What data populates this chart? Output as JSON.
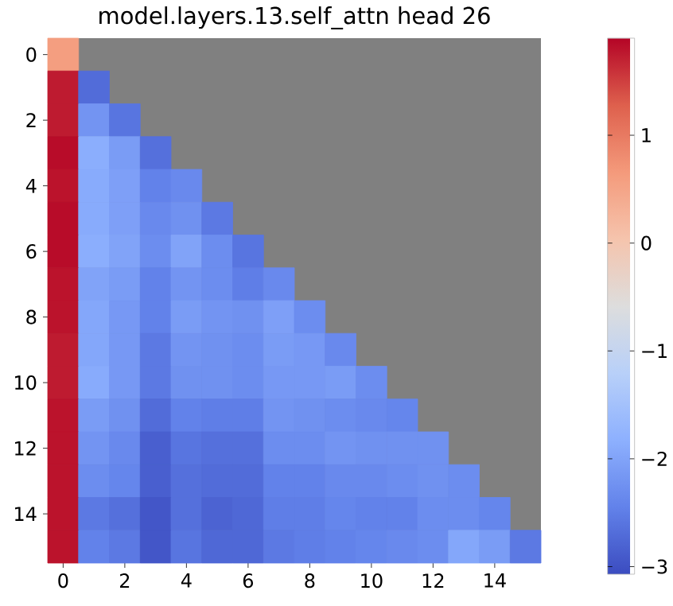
{
  "chart_data": {
    "type": "heatmap",
    "title": "model.layers.13.self_attn head 26",
    "categories": [
      "0",
      null,
      "2",
      null,
      "4",
      null,
      "6",
      null,
      "8",
      null,
      "10",
      null,
      "12",
      null,
      "14",
      null
    ],
    "y_categories": [
      "0",
      null,
      "2",
      null,
      "4",
      null,
      "6",
      null,
      "8",
      null,
      "10",
      null,
      "12",
      null,
      "14",
      null
    ],
    "cells": [
      [
        0.6,
        null,
        null,
        null,
        null,
        null,
        null,
        null,
        null,
        null,
        null,
        null,
        null,
        null,
        null,
        null
      ],
      [
        1.75,
        -2.7,
        null,
        null,
        null,
        null,
        null,
        null,
        null,
        null,
        null,
        null,
        null,
        null,
        null,
        null
      ],
      [
        1.75,
        -2.2,
        -2.6,
        null,
        null,
        null,
        null,
        null,
        null,
        null,
        null,
        null,
        null,
        null,
        null,
        null
      ],
      [
        1.85,
        -1.85,
        -2.1,
        -2.65,
        null,
        null,
        null,
        null,
        null,
        null,
        null,
        null,
        null,
        null,
        null,
        null
      ],
      [
        1.8,
        -1.9,
        -2.05,
        -2.45,
        -2.35,
        null,
        null,
        null,
        null,
        null,
        null,
        null,
        null,
        null,
        null,
        null
      ],
      [
        1.85,
        -1.9,
        -2.05,
        -2.35,
        -2.25,
        -2.55,
        null,
        null,
        null,
        null,
        null,
        null,
        null,
        null,
        null,
        null
      ],
      [
        1.85,
        -1.85,
        -2.0,
        -2.3,
        -2.0,
        -2.3,
        -2.6,
        null,
        null,
        null,
        null,
        null,
        null,
        null,
        null,
        null
      ],
      [
        1.8,
        -2.0,
        -2.1,
        -2.45,
        -2.2,
        -2.3,
        -2.5,
        -2.35,
        null,
        null,
        null,
        null,
        null,
        null,
        null,
        null
      ],
      [
        1.8,
        -1.95,
        -2.15,
        -2.45,
        -2.1,
        -2.2,
        -2.25,
        -2.05,
        -2.3,
        null,
        null,
        null,
        null,
        null,
        null,
        null
      ],
      [
        1.75,
        -1.95,
        -2.15,
        -2.55,
        -2.2,
        -2.25,
        -2.3,
        -2.1,
        -2.15,
        -2.35,
        null,
        null,
        null,
        null,
        null,
        null
      ],
      [
        1.75,
        -1.9,
        -2.15,
        -2.55,
        -2.25,
        -2.25,
        -2.3,
        -2.15,
        -2.15,
        -2.1,
        -2.3,
        null,
        null,
        null,
        null,
        null
      ],
      [
        1.8,
        -2.1,
        -2.25,
        -2.7,
        -2.45,
        -2.5,
        -2.5,
        -2.2,
        -2.25,
        -2.3,
        -2.35,
        -2.4,
        null,
        null,
        null,
        null
      ],
      [
        1.8,
        -2.2,
        -2.35,
        -2.85,
        -2.6,
        -2.65,
        -2.65,
        -2.3,
        -2.3,
        -2.2,
        -2.25,
        -2.25,
        -2.25,
        null,
        null,
        null
      ],
      [
        1.8,
        -2.3,
        -2.4,
        -2.85,
        -2.65,
        -2.7,
        -2.7,
        -2.45,
        -2.45,
        -2.35,
        -2.35,
        -2.3,
        -2.25,
        -2.3,
        null,
        null
      ],
      [
        1.8,
        -2.55,
        -2.65,
        -2.95,
        -2.65,
        -2.8,
        -2.75,
        -2.5,
        -2.5,
        -2.4,
        -2.45,
        -2.45,
        -2.3,
        -2.3,
        -2.4,
        null
      ],
      [
        1.8,
        -2.45,
        -2.55,
        -2.95,
        -2.6,
        -2.75,
        -2.75,
        -2.55,
        -2.5,
        -2.45,
        -2.4,
        -2.35,
        -2.3,
        -1.95,
        -2.1,
        -2.55
      ]
    ],
    "clim": [
      -3.07,
      1.9
    ],
    "cticks": [
      {
        "value": -3,
        "label": "−3"
      },
      {
        "value": -2,
        "label": "−2"
      },
      {
        "value": -1,
        "label": "−1"
      },
      {
        "value": 0,
        "label": "0"
      },
      {
        "value": 1,
        "label": "1"
      }
    ]
  }
}
